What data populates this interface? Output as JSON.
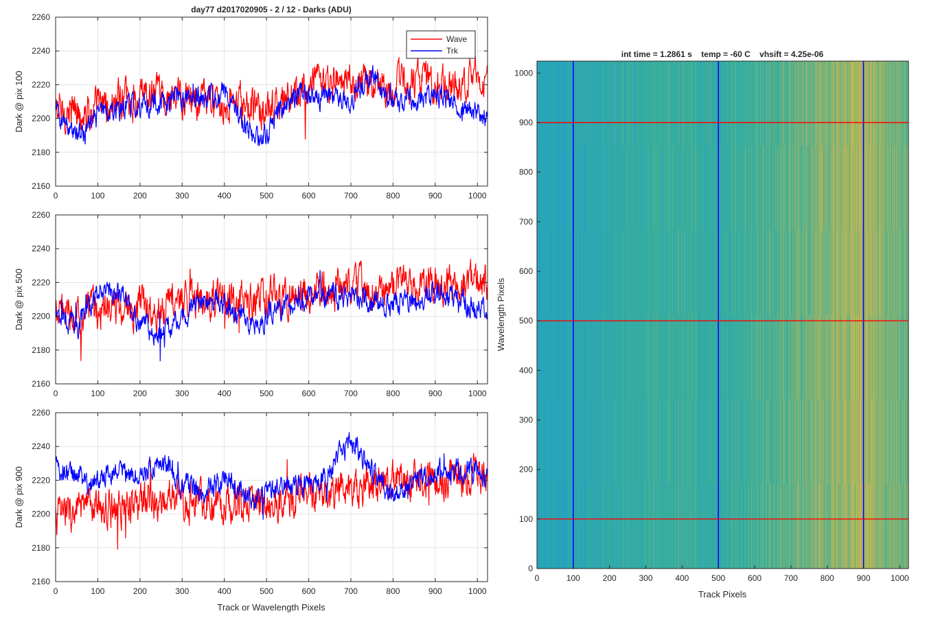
{
  "figure": {
    "left_title": "day77 d2017020905 - 2 / 12 - Darks (ADU)",
    "right_title": "int time = 1.2861 s    temp = -60 C    vhsift = 4.25e-06"
  },
  "colors": {
    "wave": "#ff0000",
    "trk": "#0000ff",
    "grid": "#e3e3e3",
    "axis": "#262626",
    "heat_low": "#1f9ec9",
    "heat_mid": "#3aaf9a",
    "heat_high": "#d6b748"
  },
  "chart_data": [
    {
      "type": "line",
      "title": "day77 d2017020905 - 2 / 12 - Darks (ADU)",
      "xlabel": "",
      "ylabel": "Dark @ pix 100",
      "xlim": [
        0,
        1024
      ],
      "ylim": [
        2160,
        2260
      ],
      "xticks": [
        "0",
        "100",
        "200",
        "300",
        "400",
        "500",
        "600",
        "700",
        "800",
        "900",
        "1000"
      ],
      "yticks": [
        "2160",
        "2180",
        "2200",
        "2220",
        "2240",
        "2260"
      ],
      "grid": true,
      "legend": "top-right",
      "series": [
        {
          "name": "Wave",
          "color": "#ff0000",
          "knots_x": [
            0,
            100,
            200,
            300,
            400,
            500,
            600,
            700,
            800,
            900,
            1024
          ],
          "knots_y": [
            2204,
            2206,
            2212,
            2212,
            2210,
            2204,
            2218,
            2222,
            2220,
            2222,
            2222
          ],
          "noise": 10
        },
        {
          "name": "Trk",
          "color": "#0000ff",
          "knots_x": [
            0,
            30,
            60,
            100,
            150,
            200,
            300,
            350,
            400,
            450,
            480,
            520,
            580,
            620,
            700,
            750,
            800,
            900,
            1024
          ],
          "knots_y": [
            2204,
            2196,
            2188,
            2202,
            2205,
            2208,
            2212,
            2212,
            2216,
            2196,
            2185,
            2200,
            2216,
            2212,
            2212,
            2226,
            2210,
            2214,
            2200
          ],
          "noise": 6
        }
      ]
    },
    {
      "type": "line",
      "xlabel": "",
      "ylabel": "Dark @ pix 500",
      "xlim": [
        0,
        1024
      ],
      "ylim": [
        2160,
        2260
      ],
      "xticks": [
        "0",
        "100",
        "200",
        "300",
        "400",
        "500",
        "600",
        "700",
        "800",
        "900",
        "1000"
      ],
      "yticks": [
        "2160",
        "2180",
        "2200",
        "2220",
        "2240",
        "2260"
      ],
      "grid": true,
      "series": [
        {
          "name": "Wave",
          "color": "#ff0000",
          "knots_x": [
            0,
            100,
            200,
            300,
            400,
            500,
            600,
            700,
            800,
            900,
            1024
          ],
          "knots_y": [
            2200,
            2204,
            2206,
            2208,
            2210,
            2210,
            2214,
            2216,
            2216,
            2218,
            2220
          ],
          "noise": 10
        },
        {
          "name": "Trk",
          "color": "#0000ff",
          "knots_x": [
            0,
            50,
            110,
            150,
            200,
            250,
            300,
            350,
            400,
            460,
            520,
            580,
            650,
            720,
            800,
            900,
            1024
          ],
          "knots_y": [
            2205,
            2192,
            2218,
            2212,
            2196,
            2188,
            2200,
            2208,
            2208,
            2195,
            2202,
            2210,
            2214,
            2210,
            2208,
            2214,
            2204
          ],
          "noise": 6
        }
      ]
    },
    {
      "type": "line",
      "xlabel": "Track or Wavelength Pixels",
      "ylabel": "Dark @ pix 900",
      "xlim": [
        0,
        1024
      ],
      "ylim": [
        2160,
        2260
      ],
      "xticks": [
        "0",
        "100",
        "200",
        "300",
        "400",
        "500",
        "600",
        "700",
        "800",
        "900",
        "1000"
      ],
      "yticks": [
        "2160",
        "2180",
        "2200",
        "2220",
        "2240",
        "2260"
      ],
      "grid": true,
      "series": [
        {
          "name": "Wave",
          "color": "#ff0000",
          "knots_x": [
            0,
            100,
            200,
            300,
            400,
            500,
            600,
            700,
            800,
            900,
            1024
          ],
          "knots_y": [
            2200,
            2204,
            2206,
            2208,
            2208,
            2206,
            2212,
            2216,
            2220,
            2220,
            2222
          ],
          "noise": 10
        },
        {
          "name": "Trk",
          "color": "#0000ff",
          "knots_x": [
            0,
            50,
            80,
            130,
            200,
            250,
            300,
            350,
            400,
            470,
            540,
            600,
            650,
            700,
            750,
            800,
            850,
            950,
            1024
          ],
          "knots_y": [
            2230,
            2222,
            2218,
            2226,
            2222,
            2234,
            2216,
            2212,
            2222,
            2208,
            2218,
            2216,
            2226,
            2244,
            2226,
            2210,
            2222,
            2226,
            2222
          ],
          "noise": 6
        }
      ]
    },
    {
      "type": "heatmap",
      "title": "int time = 1.2861 s    temp = -60 C    vhsift = 4.25e-06",
      "xlabel": "Track Pixels",
      "ylabel": "Wavelength Pixels",
      "xlim": [
        0,
        1024
      ],
      "ylim": [
        0,
        1024
      ],
      "xticks": [
        "0",
        "100",
        "200",
        "300",
        "400",
        "500",
        "600",
        "700",
        "800",
        "900",
        "1000"
      ],
      "yticks": [
        "0",
        "100",
        "200",
        "300",
        "400",
        "500",
        "600",
        "700",
        "800",
        "900",
        "1000"
      ],
      "vertical_lines": [
        {
          "x": 100,
          "color": "#0000ff"
        },
        {
          "x": 500,
          "color": "#0000ff"
        },
        {
          "x": 900,
          "color": "#0000ff"
        }
      ],
      "horizontal_lines": [
        {
          "y": 100,
          "color": "#ff0000"
        },
        {
          "y": 500,
          "color": "#ff0000"
        },
        {
          "y": 900,
          "color": "#ff0000"
        }
      ],
      "column_profile_x": [
        0,
        100,
        200,
        300,
        400,
        500,
        600,
        700,
        800,
        850,
        900,
        950,
        1024
      ],
      "column_profile_level": [
        0.15,
        0.22,
        0.35,
        0.45,
        0.45,
        0.4,
        0.5,
        0.62,
        0.72,
        0.82,
        0.88,
        0.75,
        0.62
      ]
    }
  ]
}
